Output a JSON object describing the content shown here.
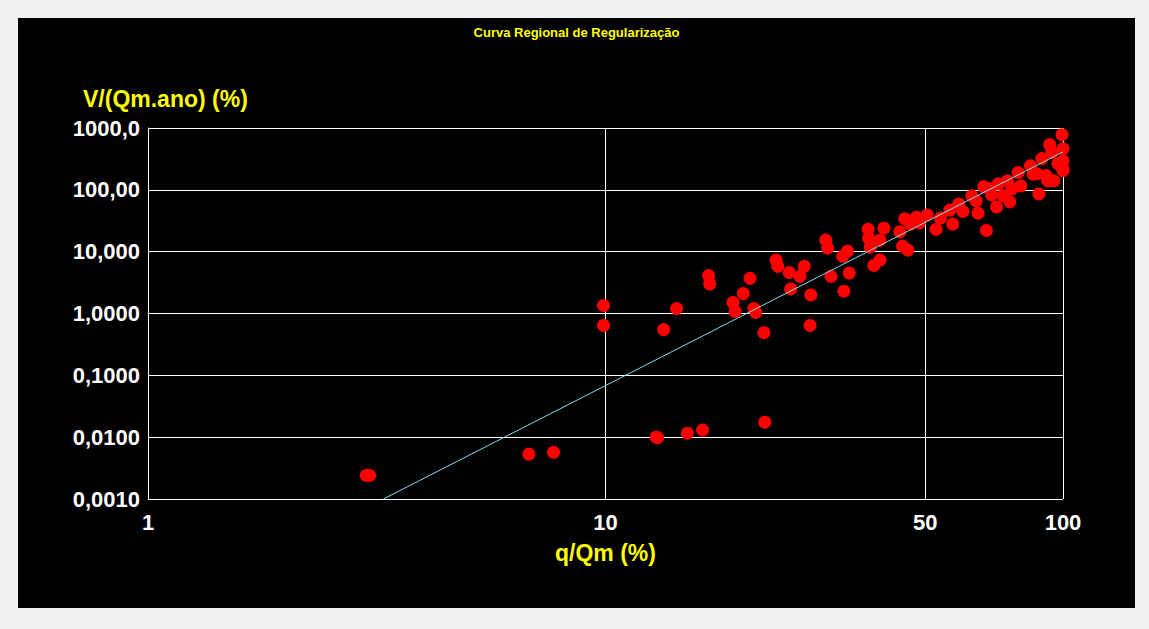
{
  "chart_data": {
    "type": "scatter",
    "title": "Curva Regional de Regularização",
    "x_label": "q/Qm (%)",
    "y_label": "V/(Qm.ano) (%)",
    "log": true,
    "grid": true,
    "xlim": [
      1,
      100
    ],
    "xticks": [
      1,
      10,
      50,
      100
    ],
    "ylim": [
      0.001,
      1000
    ],
    "yticks": [
      {
        "value": 0.001,
        "label": "0,0010"
      },
      {
        "value": 0.01,
        "label": "0,0100"
      },
      {
        "value": 0.1,
        "label": "0,1000"
      },
      {
        "value": 1,
        "label": "1,0000"
      },
      {
        "value": 10,
        "label": "10,000"
      },
      {
        "value": 100,
        "label": "100,00"
      },
      {
        "value": 1000,
        "label": "1000,0"
      }
    ],
    "series": [
      {
        "type": "scatter",
        "color": "#ff0000",
        "marker": "circle",
        "x": [
          3.0,
          3.05,
          6.8,
          7.7,
          9.9,
          9.9,
          12.9,
          13.0,
          13.4,
          14.3,
          15.1,
          16.3,
          16.8,
          16.9,
          19.0,
          19.2,
          20.0,
          20.7,
          21.1,
          21.3,
          22.2,
          22.3,
          23.6,
          23.8,
          25.2,
          25.4,
          26.6,
          27.2,
          28.1,
          28.0,
          30.3,
          30.6,
          31.1,
          33.0,
          33.2,
          33.8,
          34.1,
          37.5,
          37.6,
          37.9,
          38.6,
          39.8,
          39.8,
          40.6,
          44.0,
          44.6,
          45.1,
          45.8,
          46.4,
          47.8,
          48.5,
          50.5,
          52.8,
          54.0,
          56.6,
          57.4,
          59.2,
          60.4,
          63.2,
          64.6,
          65.2,
          67.1,
          69.1,
          69.8,
          72.2,
          74.0,
          75.6,
          77.3,
          79.8,
          80.9,
          84.9,
          87.6,
          88.6,
          89.9,
          91.9,
          93.5,
          94.5,
          95.5,
          97.5,
          99.5,
          100,
          100,
          100,
          100,
          68,
          71.6,
          76.5,
          86,
          92.6
        ],
        "values": [
          0.0024,
          0.0024,
          0.0053,
          0.0057,
          1.35,
          0.64,
          0.01,
          0.0098,
          0.55,
          1.2,
          0.0116,
          0.013,
          4.1,
          3.0,
          1.5,
          1.08,
          2.1,
          3.7,
          1.2,
          1.04,
          0.49,
          0.0175,
          7.3,
          5.8,
          4.6,
          2.5,
          4.0,
          5.8,
          2.0,
          0.64,
          15.4,
          11.4,
          4.0,
          8.4,
          2.3,
          10.2,
          4.5,
          23,
          16.5,
          11.8,
          6.0,
          7.3,
          15.4,
          24,
          21,
          12.3,
          34,
          10.6,
          28,
          36,
          29,
          39,
          23,
          35,
          47,
          28,
          59,
          45,
          80,
          66,
          42,
          112,
          104,
          83,
          125,
          80,
          140,
          104,
          190,
          116,
          245,
          182,
          86,
          320,
          170,
          540,
          400,
          140,
          265,
          780,
          460,
          295,
          220,
          205,
          22,
          53,
          64,
          180,
          140
        ]
      },
      {
        "type": "line",
        "color": "#7fdcec",
        "line_style": "solid",
        "x": [
          3.27,
          100
        ],
        "values": [
          0.001,
          410
        ]
      }
    ]
  }
}
